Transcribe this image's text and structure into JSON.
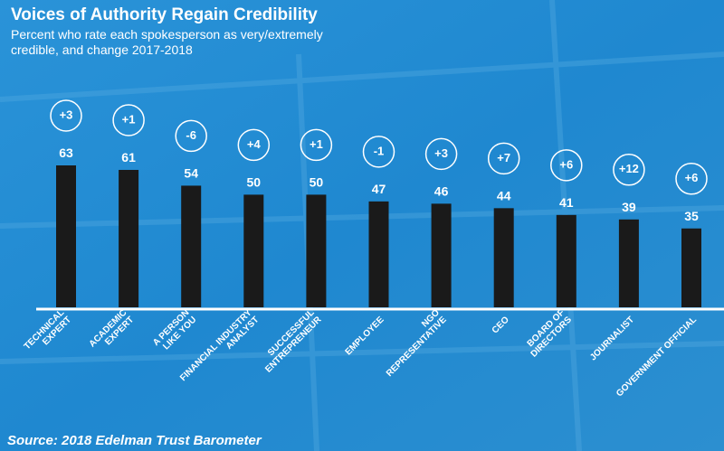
{
  "chart_data": {
    "type": "bar",
    "title": "Voices of Authority Regain Credibility",
    "subtitle": [
      "Percent who rate each spokesperson as very/extremely",
      "credible, and change 2017-2018"
    ],
    "categories": [
      [
        "TECHNICAL",
        "EXPERT"
      ],
      [
        "ACADEMIC",
        "EXPERT"
      ],
      [
        "A PERSON",
        "LIKE YOU"
      ],
      [
        "FINANCIAL INDUSTRY",
        "ANALYST"
      ],
      [
        "SUCCESSFUL",
        "ENTREPRENEUR"
      ],
      [
        "EMPLOYEE"
      ],
      [
        "NGO",
        "REPRESENTATIVE"
      ],
      [
        "CEO"
      ],
      [
        "BOARD OF",
        "DIRECTORS"
      ],
      [
        "JOURNALIST"
      ],
      [
        "GOVERNMENT OFFICIAL"
      ]
    ],
    "values": [
      63,
      61,
      54,
      50,
      50,
      47,
      46,
      44,
      41,
      39,
      35
    ],
    "changes": [
      3,
      1,
      -6,
      4,
      1,
      -1,
      3,
      7,
      6,
      12,
      6
    ],
    "change_labels": [
      "+3",
      "+1",
      "-6",
      "+4",
      "+1",
      "-1",
      "+3",
      "+7",
      "+6",
      "+12",
      "+6"
    ],
    "color": "#1a1a1a",
    "source": "Source: 2018 Edelman Trust Barometer"
  }
}
